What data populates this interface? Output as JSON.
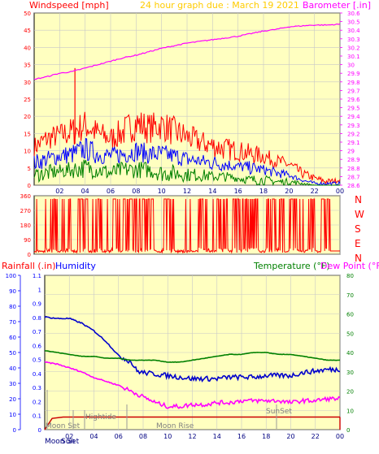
{
  "colors": {
    "background": "#ffffff",
    "plot_bg": "#ffffc0",
    "grid": "#c8c8c8",
    "wind_high": "#ff0000",
    "wind_avg": "#0000ff",
    "wind_low": "#008000",
    "barometer": "#ff00ff",
    "direction": "#ff0000",
    "humidity": "#0000cc",
    "temperature": "#008000",
    "dewpoint": "#ff00ff",
    "rainfall": "#cc0000",
    "title_yellow": "#ffcc00",
    "label_green": "#008000",
    "label_blue": "#0000ff",
    "label_red": "#ff0000",
    "label_magenta": "#ff00ff"
  },
  "header": {
    "wind_label": "Windspeed [mph]",
    "title": "24 hour graph due : March 19 2021",
    "baro_label": "Barometer [.in]"
  },
  "lower_header": {
    "rain_label": "Rainfall (.in)",
    "humidity_label": "Humidity",
    "temp_label": "Temperature (°F)",
    "dew_label": "Dew Point (°F)"
  },
  "direction_letters": [
    "N",
    "W",
    "S",
    "E",
    "N"
  ],
  "events": {
    "moon_set": "Moon Set",
    "sun_rise": "Sun Rise",
    "high_tide": "Hightide",
    "moon_rise": "Moon Rise",
    "sun_set": "SunSet",
    "bottom_moon_set": "Moon Set",
    "bottom_sun": "Sun",
    "bottom_rise": "Rise"
  },
  "chart_data": [
    {
      "type": "line",
      "name": "wind_barometer",
      "x_ticks": [
        "02",
        "04",
        "06",
        "08",
        "10",
        "12",
        "14",
        "16",
        "18",
        "20",
        "22",
        "00"
      ],
      "y_left_ticks": [
        "0",
        "5",
        "10",
        "15",
        "20",
        "25",
        "30",
        "35",
        "40",
        "45",
        "50"
      ],
      "y_left_range": [
        0,
        50
      ],
      "y_right_ticks": [
        "28.6",
        "28.7",
        "28.8",
        "28.9",
        "29",
        "29.1",
        "29.2",
        "29.3",
        "29.4",
        "29.5",
        "29.6",
        "29.7",
        "29.8",
        "29.9",
        "30",
        "30.1",
        "30.2",
        "30.3",
        "30.4",
        "30.5",
        "30.6"
      ],
      "y_right_range": [
        28.6,
        30.6
      ],
      "x_range_hours": [
        0,
        24
      ],
      "series": [
        {
          "key": "barometer",
          "x": [
            0,
            1,
            2,
            3,
            4,
            5,
            6,
            7,
            8,
            9,
            10,
            11,
            12,
            13,
            14,
            15,
            16,
            17,
            18,
            19,
            20,
            21,
            22,
            23,
            24
          ],
          "y": [
            29.83,
            29.86,
            29.9,
            29.92,
            29.96,
            30.0,
            30.04,
            30.08,
            30.11,
            30.15,
            30.19,
            30.22,
            30.25,
            30.27,
            30.29,
            30.31,
            30.33,
            30.36,
            30.39,
            30.41,
            30.44,
            30.45,
            30.46,
            30.46,
            30.47
          ]
        },
        {
          "key": "wind_high",
          "x": [
            0,
            1,
            2,
            3,
            4,
            5,
            6,
            7,
            8,
            9,
            10,
            11,
            12,
            13,
            14,
            15,
            16,
            17,
            18,
            19,
            20,
            21,
            22,
            23,
            24
          ],
          "y": [
            14,
            17,
            18,
            20,
            22,
            19,
            17,
            20,
            23,
            21,
            22,
            20,
            18,
            16,
            15,
            14,
            13,
            12,
            11,
            9,
            8,
            5,
            3,
            2,
            2
          ],
          "min": [
            8,
            10,
            11,
            11,
            13,
            11,
            10,
            11,
            13,
            12,
            13,
            11,
            10,
            9,
            8,
            7,
            7,
            6,
            6,
            5,
            4,
            2,
            1,
            0,
            1
          ]
        },
        {
          "key": "wind_avg",
          "x": [
            0,
            1,
            2,
            3,
            4,
            5,
            6,
            7,
            8,
            9,
            10,
            11,
            12,
            13,
            14,
            15,
            16,
            17,
            18,
            19,
            20,
            21,
            22,
            23,
            24
          ],
          "y": [
            9,
            10,
            11,
            12,
            14,
            12,
            11,
            12,
            13,
            12,
            12,
            11,
            10,
            9,
            9,
            8,
            7,
            7,
            6,
            5,
            4,
            2,
            1,
            1,
            1
          ],
          "min": [
            4,
            5,
            6,
            6,
            7,
            6,
            6,
            6,
            7,
            6,
            6,
            6,
            5,
            5,
            4,
            4,
            4,
            3,
            3,
            2,
            2,
            1,
            0,
            0,
            0
          ]
        },
        {
          "key": "wind_low",
          "x": [
            0,
            1,
            2,
            3,
            4,
            5,
            6,
            7,
            8,
            9,
            10,
            11,
            12,
            13,
            14,
            15,
            16,
            17,
            18,
            19,
            20,
            21,
            22,
            23,
            24
          ],
          "y": [
            5,
            6,
            6,
            7,
            8,
            7,
            6,
            7,
            7,
            7,
            6,
            6,
            5,
            5,
            4,
            4,
            3,
            3,
            3,
            2,
            2,
            1,
            0,
            0,
            0
          ],
          "min": [
            1,
            1,
            2,
            2,
            2,
            2,
            1,
            2,
            2,
            2,
            1,
            1,
            1,
            1,
            1,
            1,
            1,
            0,
            0,
            0,
            0,
            0,
            0,
            0,
            0
          ]
        }
      ],
      "peak_gust": {
        "x": 3.2,
        "y": 34
      }
    },
    {
      "type": "line",
      "name": "wind_direction",
      "x_ticks": [
        "02",
        "04",
        "06",
        "08",
        "10",
        "12",
        "14",
        "16",
        "18",
        "20",
        "22",
        "00"
      ],
      "y_ticks": [
        "0",
        "90",
        "180",
        "270",
        "360"
      ],
      "y_range": [
        0,
        360
      ],
      "series": [
        {
          "key": "direction",
          "segments_high": [
            [
              0.9,
              1.7
            ],
            [
              2.2,
              2.9
            ],
            [
              3.4,
              4.2
            ],
            [
              4.6,
              5.3
            ],
            [
              6.1,
              6.6
            ],
            [
              7.0,
              7.9
            ],
            [
              8.3,
              9.4
            ],
            [
              10.1,
              11.0
            ],
            [
              12.9,
              13.7
            ],
            [
              14.4,
              15.2
            ],
            [
              15.6,
              17.6
            ],
            [
              18.2,
              19.6
            ],
            [
              20.0,
              20.7
            ],
            [
              21.4,
              22.0
            ],
            [
              22.6,
              23.1
            ]
          ],
          "high_value": 340,
          "low_value": 10
        }
      ]
    },
    {
      "type": "line",
      "name": "hum_temp_dew_rain",
      "x_ticks": [
        "02",
        "04",
        "06",
        "08",
        "10",
        "12",
        "14",
        "16",
        "18",
        "20",
        "22",
        "00"
      ],
      "y_left_outer_ticks": [
        "0",
        "10",
        "20",
        "30",
        "40",
        "50",
        "60",
        "70",
        "80",
        "90",
        "100"
      ],
      "y_left_outer_range": [
        0,
        100
      ],
      "y_left_inner_ticks": [
        "0",
        "0.1",
        "0.2",
        "0.3",
        "0.4",
        "0.5",
        "0.6",
        "0.7",
        "0.8",
        "0.9",
        "1",
        "1.1"
      ],
      "y_left_inner_range": [
        0,
        1.1
      ],
      "y_right_ticks": [
        "0",
        "10",
        "20",
        "30",
        "40",
        "50",
        "60",
        "70",
        "80"
      ],
      "y_right_range": [
        0,
        80
      ],
      "series": [
        {
          "key": "humidity",
          "x": [
            0,
            1,
            2,
            3,
            4,
            5,
            6,
            7,
            7.5,
            8,
            9,
            10,
            11,
            12,
            13,
            14,
            15,
            16,
            17,
            18,
            19,
            20,
            21,
            22,
            23,
            24
          ],
          "y": [
            73,
            72,
            72,
            69,
            64,
            57,
            48,
            44,
            38,
            37,
            36,
            35,
            34,
            33,
            33,
            33,
            34,
            34,
            34,
            35,
            35,
            35,
            37,
            38,
            39,
            39
          ]
        },
        {
          "key": "temperature",
          "x": [
            0,
            1,
            2,
            3,
            4,
            5,
            6,
            7,
            8,
            9,
            10,
            11,
            12,
            13,
            14,
            15,
            16,
            17,
            18,
            19,
            20,
            21,
            22,
            23,
            24
          ],
          "y": [
            41,
            40,
            39,
            38,
            38,
            37,
            37,
            36,
            36,
            36,
            35,
            35,
            36,
            37,
            38,
            39,
            39,
            40,
            40,
            39,
            39,
            38,
            37,
            36,
            36
          ]
        },
        {
          "key": "dewpoint",
          "x": [
            0,
            1,
            2,
            3,
            4,
            5,
            6,
            7,
            8,
            9,
            10,
            11,
            12,
            13,
            14,
            15,
            16,
            17,
            18,
            19,
            20,
            21,
            22,
            23,
            24
          ],
          "y": [
            35,
            34,
            32,
            30,
            27,
            25,
            23,
            20,
            17,
            14,
            12,
            12,
            13,
            13,
            14,
            14,
            15,
            15,
            15,
            15,
            14,
            15,
            15,
            16,
            16
          ]
        },
        {
          "key": "rainfall",
          "x": [
            0,
            0.6,
            1.5,
            24
          ],
          "y": [
            0,
            0.08,
            0.09,
            0.09
          ]
        }
      ]
    }
  ]
}
